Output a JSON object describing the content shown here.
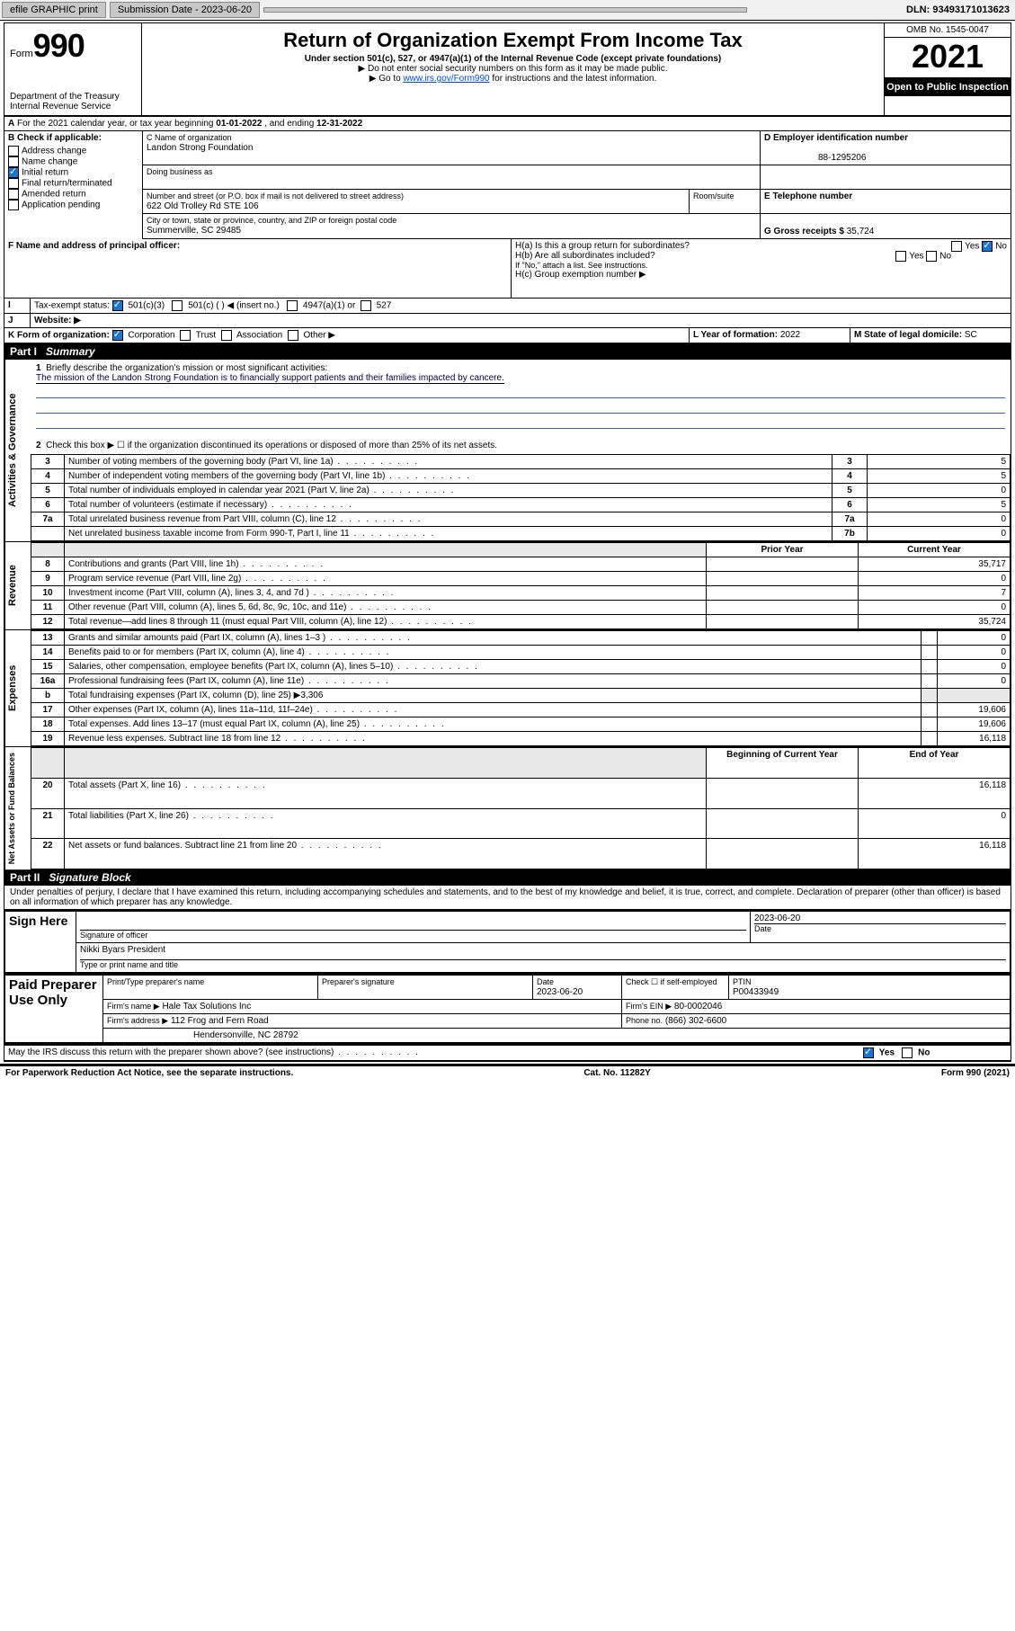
{
  "topbar": {
    "efile": "efile GRAPHIC print",
    "subdate_label": "Submission Date - ",
    "subdate": "2023-06-20",
    "dln": "DLN: 93493171013623"
  },
  "header": {
    "form_word": "Form",
    "form_no": "990",
    "dept": "Department of the Treasury\nInternal Revenue Service",
    "title": "Return of Organization Exempt From Income Tax",
    "sub1": "Under section 501(c), 527, or 4947(a)(1) of the Internal Revenue Code (except private foundations)",
    "sub2": "▶ Do not enter social security numbers on this form as it may be made public.",
    "sub3_pre": "▶ Go to ",
    "sub3_link": "www.irs.gov/Form990",
    "sub3_post": " for instructions and the latest information.",
    "omb": "OMB No. 1545-0047",
    "year": "2021",
    "open": "Open to Public Inspection"
  },
  "A": {
    "text": "For the 2021 calendar year, or tax year beginning ",
    "begin": "01-01-2022",
    "mid": " , and ending ",
    "end": "12-31-2022"
  },
  "B": {
    "header": "B Check if applicable:",
    "opts": [
      "Address change",
      "Name change",
      "Initial return",
      "Final return/terminated",
      "Amended return",
      "Application pending"
    ],
    "checked_idx": 2
  },
  "C": {
    "label": "C Name of organization",
    "name": "Landon Strong Foundation",
    "dba_lbl": "Doing business as",
    "street_lbl": "Number and street (or P.O. box if mail is not delivered to street address)",
    "room_lbl": "Room/suite",
    "street": "622 Old Trolley Rd STE 106",
    "city_lbl": "City or town, state or province, country, and ZIP or foreign postal code",
    "city": "Summerville, SC  29485"
  },
  "D": {
    "label": "D Employer identification number",
    "value": "88-1295206"
  },
  "E": {
    "label": "E Telephone number",
    "value": ""
  },
  "F": {
    "label": "F  Name and address of principal officer:"
  },
  "G": {
    "label": "G Gross receipts $",
    "value": "35,724"
  },
  "H": {
    "a": "H(a)  Is this a group return for subordinates?",
    "b": "H(b)  Are all subordinates included?",
    "bnote": "If \"No,\" attach a list. See instructions.",
    "c": "H(c)  Group exemption number ▶",
    "yes": "Yes",
    "no": "No"
  },
  "I": {
    "label": "Tax-exempt status:",
    "opts": [
      "501(c)(3)",
      "501(c) (  ) ◀ (insert no.)",
      "4947(a)(1) or",
      "527"
    ]
  },
  "J": {
    "label": "Website: ▶"
  },
  "K": {
    "label": "K Form of organization:",
    "opts": [
      "Corporation",
      "Trust",
      "Association",
      "Other ▶"
    ]
  },
  "L": {
    "label": "L Year of formation: ",
    "value": "2022"
  },
  "M": {
    "label": "M State of legal domicile: ",
    "value": "SC"
  },
  "partI": {
    "hdr": "Part I",
    "title": "Summary"
  },
  "summary": {
    "q1": "Briefly describe the organization's mission or most significant activities:",
    "mission": "The mission of the Landon Strong Foundation is to financially support patients and their families impacted by cancere.",
    "q2": "Check this box ▶ ☐  if the organization discontinued its operations or disposed of more than 25% of its net assets.",
    "lines_gov": [
      {
        "n": "3",
        "t": "Number of voting members of the governing body (Part VI, line 1a)",
        "box": "3",
        "v": "5"
      },
      {
        "n": "4",
        "t": "Number of independent voting members of the governing body (Part VI, line 1b)",
        "box": "4",
        "v": "5"
      },
      {
        "n": "5",
        "t": "Total number of individuals employed in calendar year 2021 (Part V, line 2a)",
        "box": "5",
        "v": "0"
      },
      {
        "n": "6",
        "t": "Total number of volunteers (estimate if necessary)",
        "box": "6",
        "v": "5"
      },
      {
        "n": "7a",
        "t": "Total unrelated business revenue from Part VIII, column (C), line 12",
        "box": "7a",
        "v": "0"
      },
      {
        "n": "",
        "t": "Net unrelated business taxable income from Form 990-T, Part I, line 11",
        "box": "7b",
        "v": "0"
      }
    ],
    "col_prior": "Prior Year",
    "col_curr": "Current Year",
    "rev": [
      {
        "n": "8",
        "t": "Contributions and grants (Part VIII, line 1h)",
        "p": "",
        "c": "35,717"
      },
      {
        "n": "9",
        "t": "Program service revenue (Part VIII, line 2g)",
        "p": "",
        "c": "0"
      },
      {
        "n": "10",
        "t": "Investment income (Part VIII, column (A), lines 3, 4, and 7d )",
        "p": "",
        "c": "7"
      },
      {
        "n": "11",
        "t": "Other revenue (Part VIII, column (A), lines 5, 6d, 8c, 9c, 10c, and 11e)",
        "p": "",
        "c": "0"
      },
      {
        "n": "12",
        "t": "Total revenue—add lines 8 through 11 (must equal Part VIII, column (A), line 12)",
        "p": "",
        "c": "35,724"
      }
    ],
    "exp": [
      {
        "n": "13",
        "t": "Grants and similar amounts paid (Part IX, column (A), lines 1–3 )",
        "p": "",
        "c": "0"
      },
      {
        "n": "14",
        "t": "Benefits paid to or for members (Part IX, column (A), line 4)",
        "p": "",
        "c": "0"
      },
      {
        "n": "15",
        "t": "Salaries, other compensation, employee benefits (Part IX, column (A), lines 5–10)",
        "p": "",
        "c": "0"
      },
      {
        "n": "16a",
        "t": "Professional fundraising fees (Part IX, column (A), line 11e)",
        "p": "",
        "c": "0"
      },
      {
        "n": "b",
        "t": "Total fundraising expenses (Part IX, column (D), line 25) ▶3,306",
        "p": "—",
        "c": "—"
      },
      {
        "n": "17",
        "t": "Other expenses (Part IX, column (A), lines 11a–11d, 11f–24e)",
        "p": "",
        "c": "19,606"
      },
      {
        "n": "18",
        "t": "Total expenses. Add lines 13–17 (must equal Part IX, column (A), line 25)",
        "p": "",
        "c": "19,606"
      },
      {
        "n": "19",
        "t": "Revenue less expenses. Subtract line 18 from line 12",
        "p": "",
        "c": "16,118"
      }
    ],
    "col_beg": "Beginning of Current Year",
    "col_end": "End of Year",
    "na": [
      {
        "n": "20",
        "t": "Total assets (Part X, line 16)",
        "p": "",
        "c": "16,118"
      },
      {
        "n": "21",
        "t": "Total liabilities (Part X, line 26)",
        "p": "",
        "c": "0"
      },
      {
        "n": "22",
        "t": "Net assets or fund balances. Subtract line 21 from line 20",
        "p": "",
        "c": "16,118"
      }
    ]
  },
  "partII": {
    "hdr": "Part II",
    "title": "Signature Block"
  },
  "sig": {
    "perjury": "Under penalties of perjury, I declare that I have examined this return, including accompanying schedules and statements, and to the best of my knowledge and belief, it is true, correct, and complete. Declaration of preparer (other than officer) is based on all information of which preparer has any knowledge.",
    "sign_here": "Sign Here",
    "sig_officer": "Signature of officer",
    "date": "Date",
    "date_val": "2023-06-20",
    "officer_name": "Nikki Byars  President",
    "type_name": "Type or print name and title",
    "paid": "Paid Preparer Use Only",
    "prep_name_lbl": "Print/Type preparer's name",
    "prep_sig_lbl": "Preparer's signature",
    "prep_date_lbl": "Date",
    "prep_date": "2023-06-20",
    "check_self": "Check ☐ if self-employed",
    "ptin_lbl": "PTIN",
    "ptin": "P00433949",
    "firm_name_lbl": "Firm's name    ▶",
    "firm_name": "Hale Tax Solutions Inc",
    "firm_ein_lbl": "Firm's EIN ▶",
    "firm_ein": "80-0002046",
    "firm_addr_lbl": "Firm's address ▶",
    "firm_addr1": "112 Frog and Fern Road",
    "firm_addr2": "Hendersonville, NC  28792",
    "phone_lbl": "Phone no.",
    "phone": "(866) 302-6600",
    "may": "May the IRS discuss this return with the preparer shown above? (see instructions)",
    "yes": "Yes",
    "no": "No"
  },
  "footer": {
    "left": "For Paperwork Reduction Act Notice, see the separate instructions.",
    "mid": "Cat. No. 11282Y",
    "right": "Form 990 (2021)"
  },
  "vtabs": {
    "gov": "Activities & Governance",
    "rev": "Revenue",
    "exp": "Expenses",
    "na": "Net Assets or Fund Balances"
  }
}
